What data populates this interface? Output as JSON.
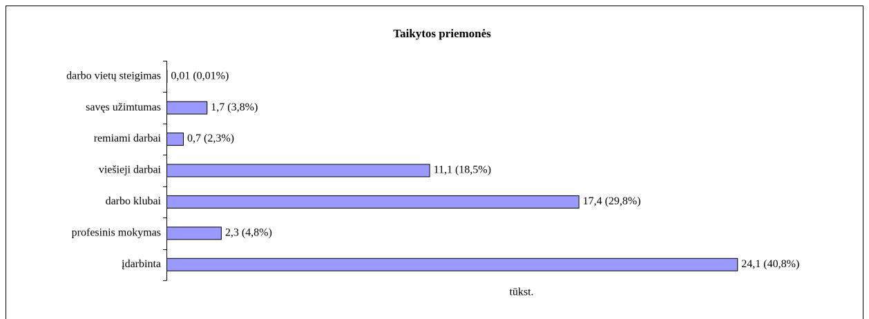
{
  "chart_data": {
    "type": "bar",
    "orientation": "horizontal",
    "title": "Taikytos priemonės",
    "categories": [
      "darbo vietų steigimas",
      "savęs užimtumas",
      "remiami darbai",
      "viešieji darbai",
      "darbo klubai",
      "profesinis mokymas",
      "įdarbinta"
    ],
    "values": [
      0.01,
      1.7,
      0.7,
      11.1,
      17.4,
      2.3,
      24.1
    ],
    "value_labels": [
      "0,01 (0,01%)",
      "1,7 (3,8%)",
      "0,7 (2,3%)",
      "11,1 (18,5%)",
      "17,4 (29,8%)",
      "2,3 (4,8%)",
      "24,1 (40,8%)"
    ],
    "color": "#9999ff",
    "xlabel": "tūkst.",
    "xlim": [
      0,
      28
    ]
  }
}
